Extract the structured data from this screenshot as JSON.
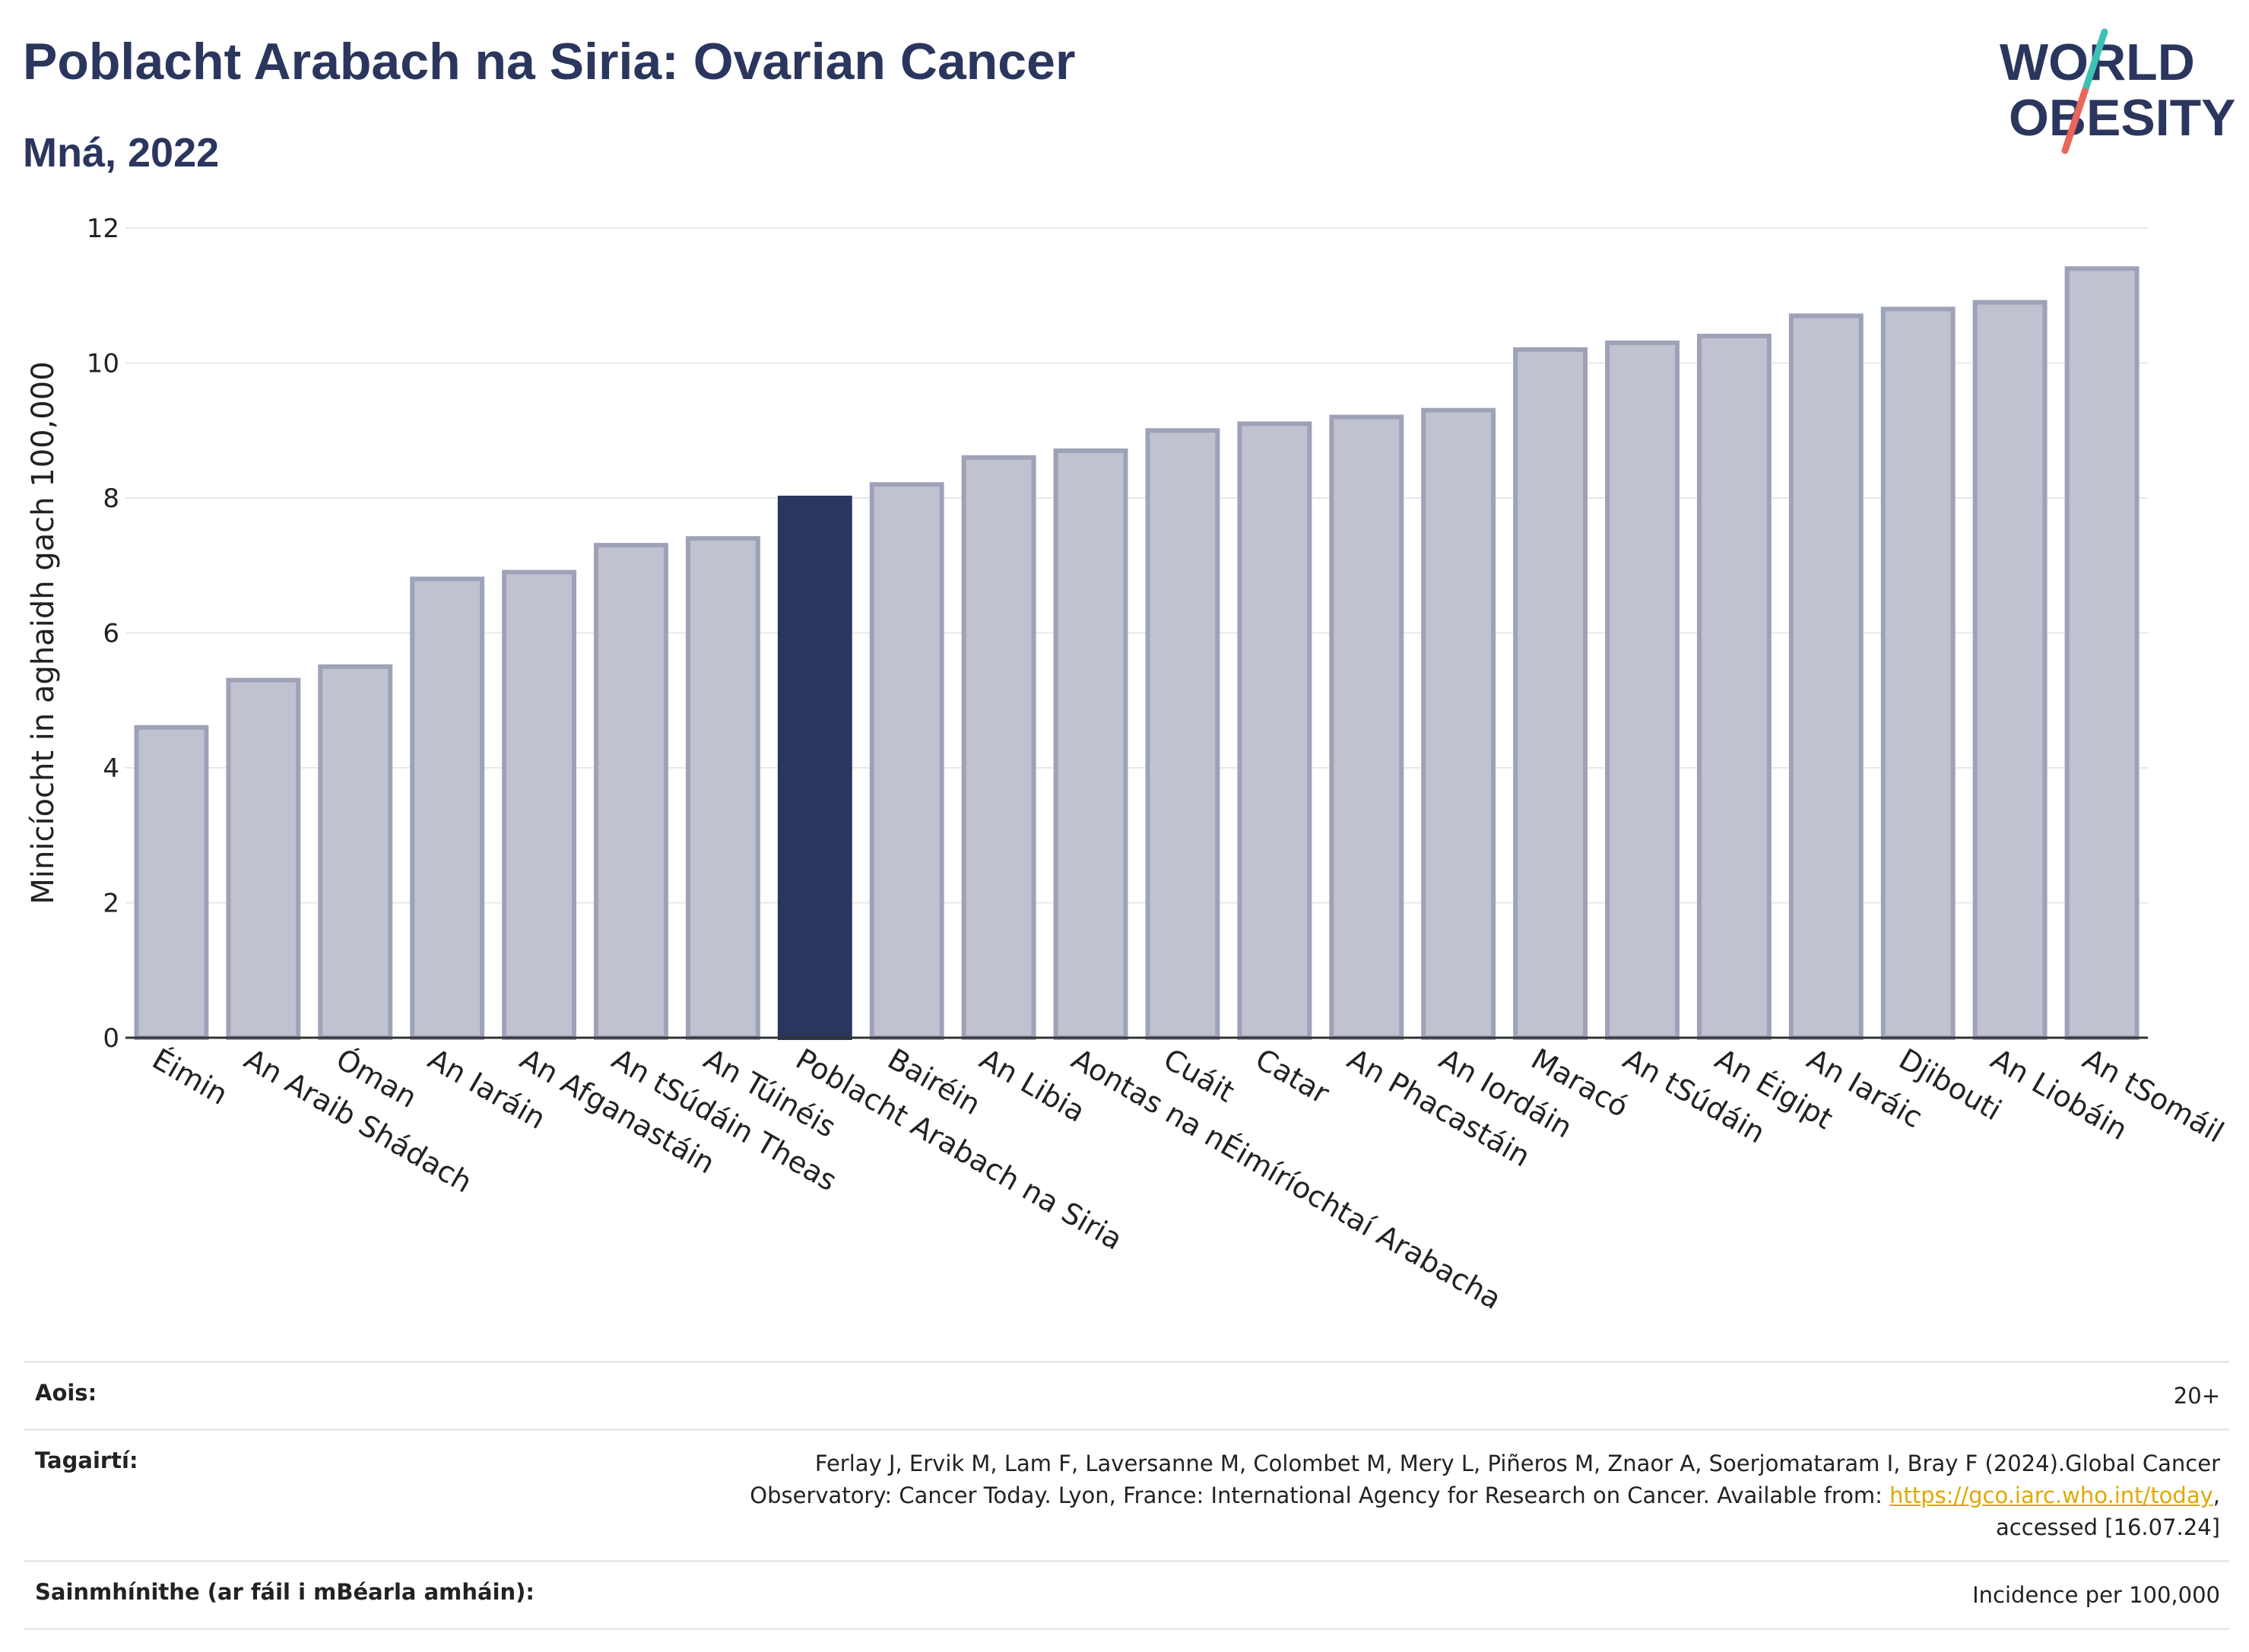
{
  "title": "Poblacht Arabach na Siria: Ovarian Cancer",
  "subtitle": "Mná, 2022",
  "logo": {
    "line1": "WORLD",
    "line2": "OBESITY"
  },
  "colors": {
    "highlight": "#2b365e",
    "bar": "#bfc2cf",
    "bar_stroke": "#9ea2b8",
    "grid": "#e8e8e8",
    "title": "#2b365e",
    "logo_accent1": "#3ec1b5",
    "logo_accent2": "#e8665a"
  },
  "chart_data": {
    "type": "bar",
    "ylabel": "Minicíocht in aghaidh gach 100,000",
    "ylim": [
      0,
      12
    ],
    "yticks": [
      0,
      2,
      4,
      6,
      8,
      10,
      12
    ],
    "grid": true,
    "highlight_category": "Poblacht Arabach na Siria",
    "categories": [
      "Éimin",
      "An Araib Shádach",
      "Óman",
      "An Iaráin",
      "An Afganastáin",
      "An tSúdáin Theas",
      "An Túinéis",
      "Poblacht Arabach na Siria",
      "Bairéin",
      "An Libia",
      "Aontas na nÉimíríochtaí Arabacha",
      "Cuáit",
      "Catar",
      "An Phacastáin",
      "An Iordáin",
      "Maracó",
      "An tSúdáin",
      "An Éigipt",
      "An Iaráic",
      "Djibouti",
      "An Liobáin",
      "An tSomáil"
    ],
    "values": [
      4.6,
      5.3,
      5.5,
      6.8,
      6.9,
      7.3,
      7.4,
      8.0,
      8.2,
      8.6,
      8.7,
      9.0,
      9.1,
      9.2,
      9.3,
      10.2,
      10.3,
      10.4,
      10.7,
      10.8,
      10.9,
      11.4
    ]
  },
  "info": {
    "age_label": "Aois:",
    "age_value": "20+",
    "ref_label": "Tagairtí:",
    "ref_text_1": "Ferlay J, Ervik M, Lam F, Laversanne M, Colombet M, Mery L, Piñeros M, Znaor A, Soerjomataram I, Bray F (2024).Global Cancer",
    "ref_text_2": "Observatory: Cancer Today. Lyon, France: International Agency for Research on Cancer. Available from: ",
    "ref_link": "https://gco.iarc.who.int/today",
    "ref_text_3": ",",
    "ref_text_4": "accessed [16.07.24]",
    "def_label": "Sainmhínithe (ar fáil i mBéarla amháin):",
    "def_value": "Incidence per 100,000"
  }
}
